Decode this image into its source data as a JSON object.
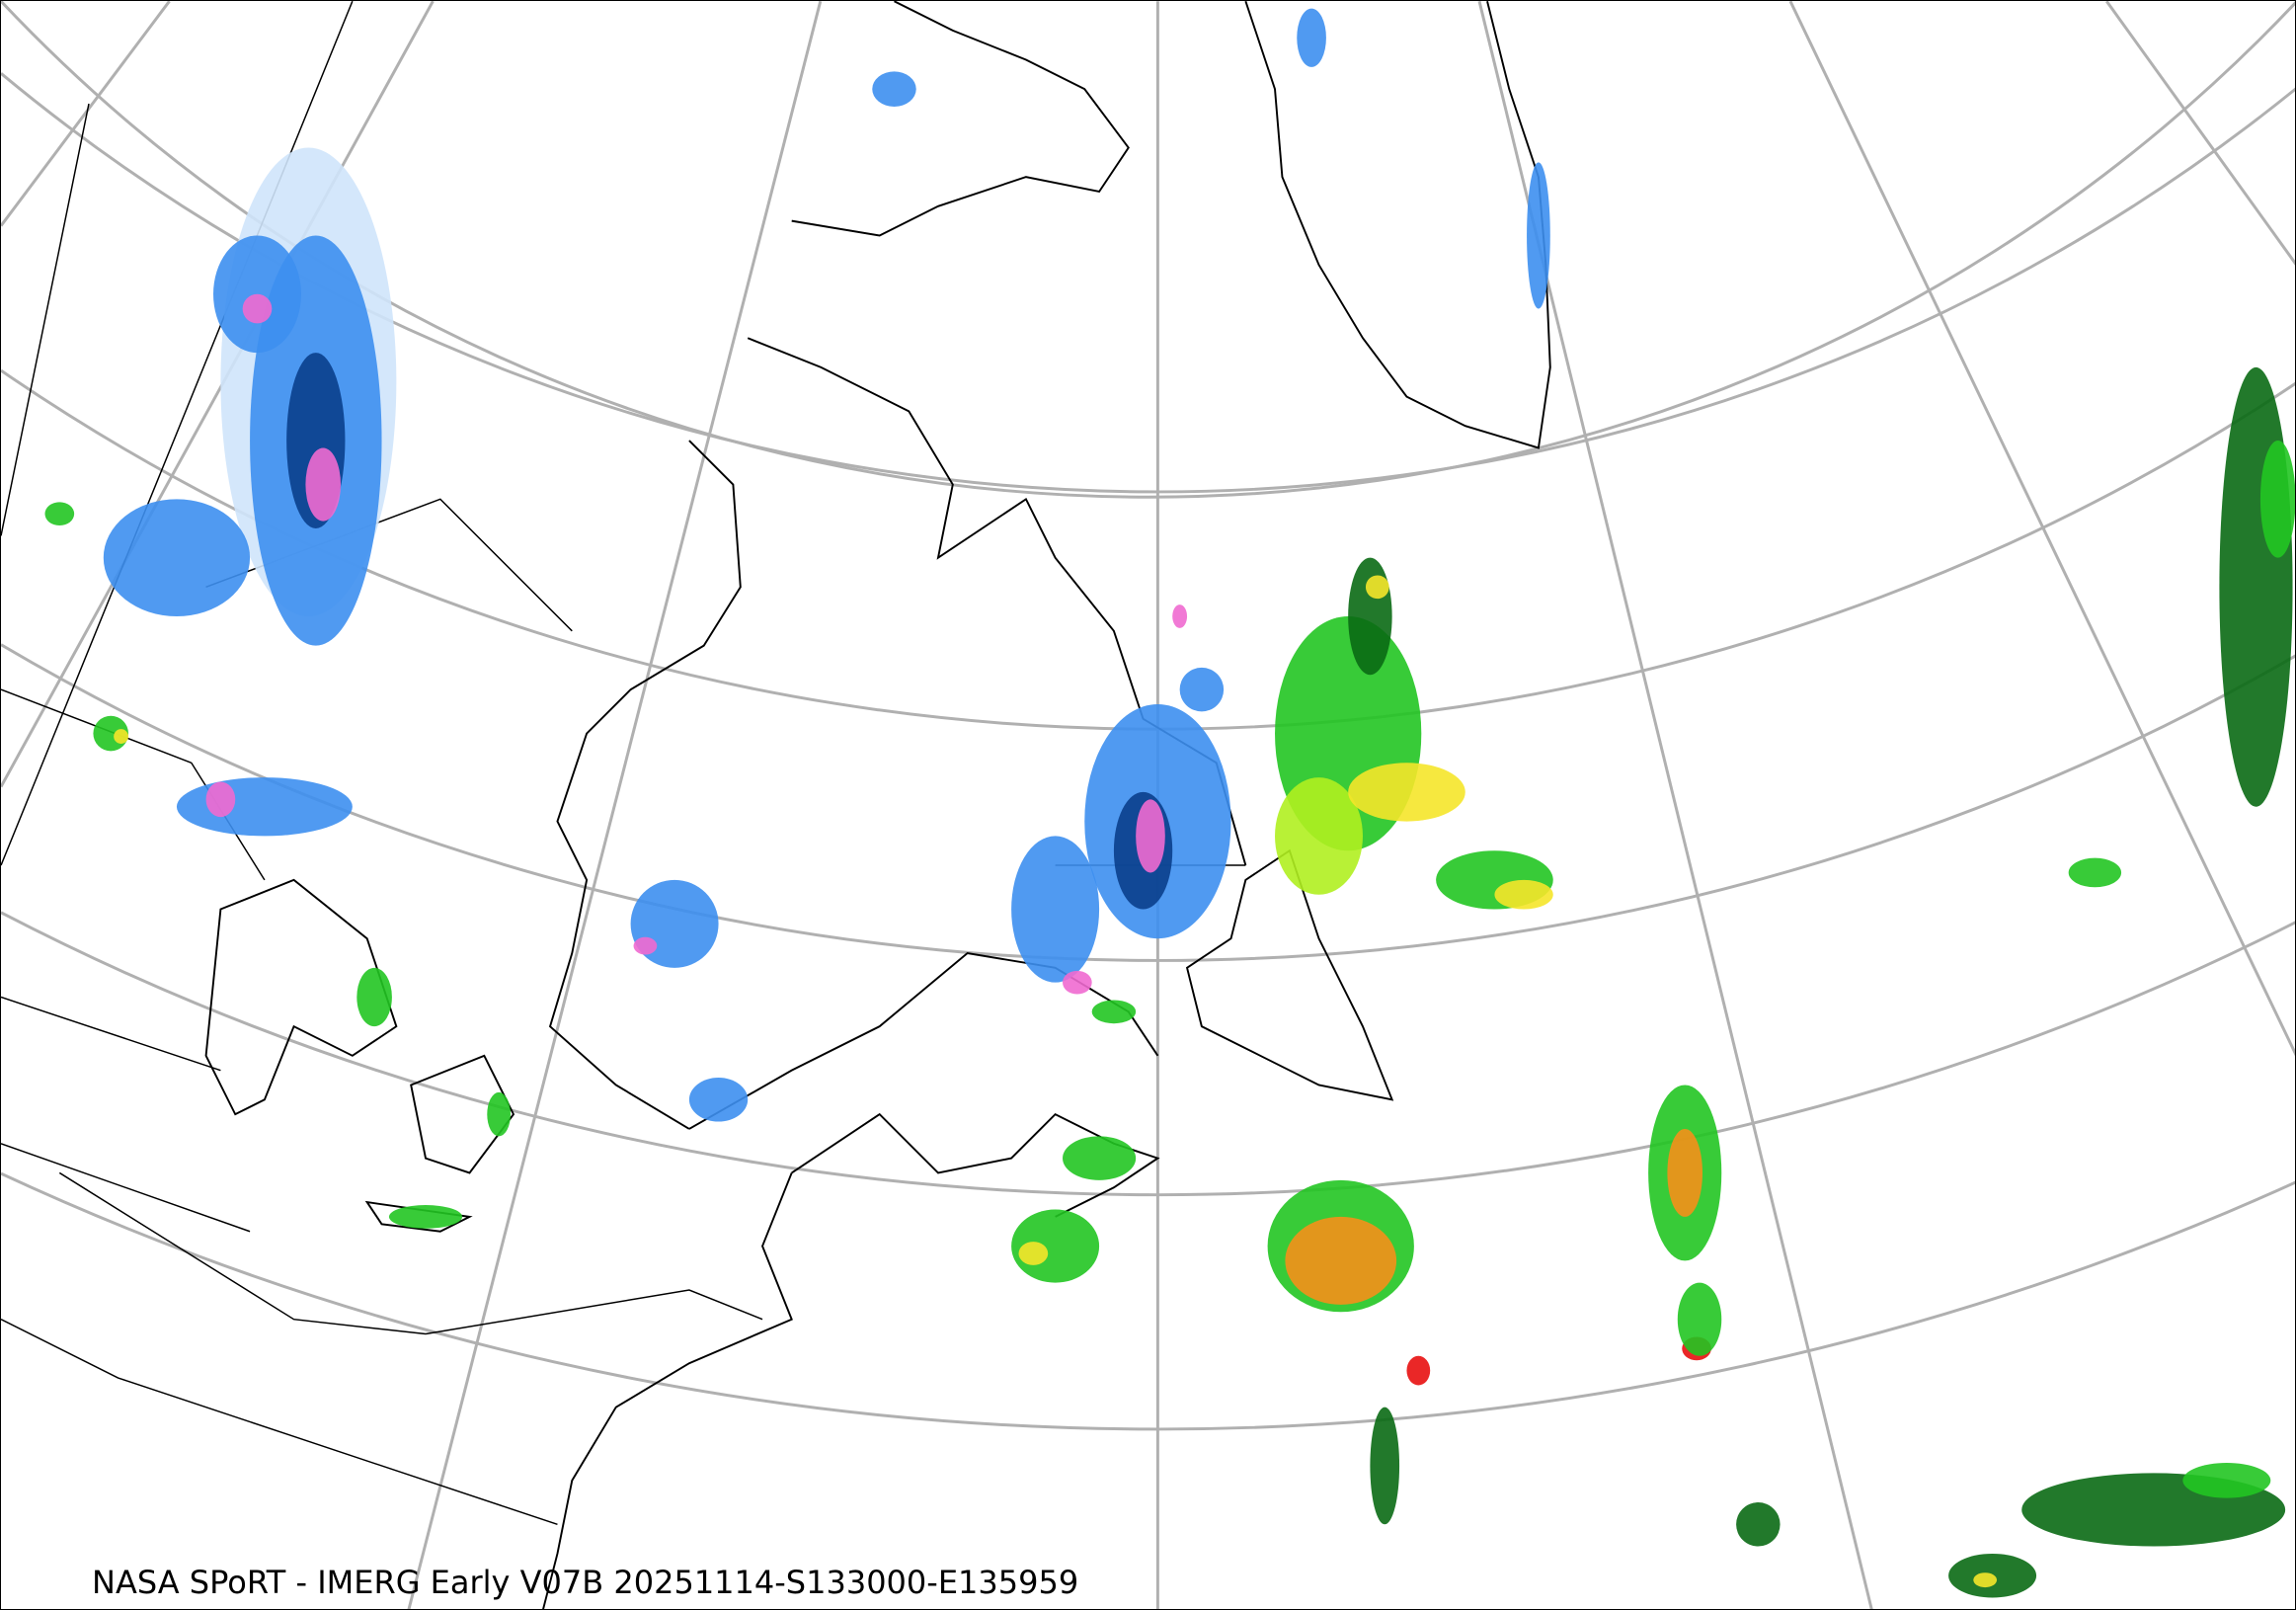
{
  "caption": "NASA SPoRT - IMERG Early V07B 20251114-S133000-E135959",
  "colors": {
    "graticule": "#b0b0b0",
    "coastline": "#000000",
    "precip_light_blue": "#cfe4fb",
    "precip_blue": "#3d8ff0",
    "precip_dark_blue": "#0a3f8c",
    "precip_pink": "#f06ad0",
    "precip_dark_green": "#0a6a14",
    "precip_green": "#22c522",
    "precip_light_green": "#b0f020",
    "precip_yellow": "#f5e52a",
    "precip_orange": "#f5901a",
    "precip_red": "#e81010"
  }
}
